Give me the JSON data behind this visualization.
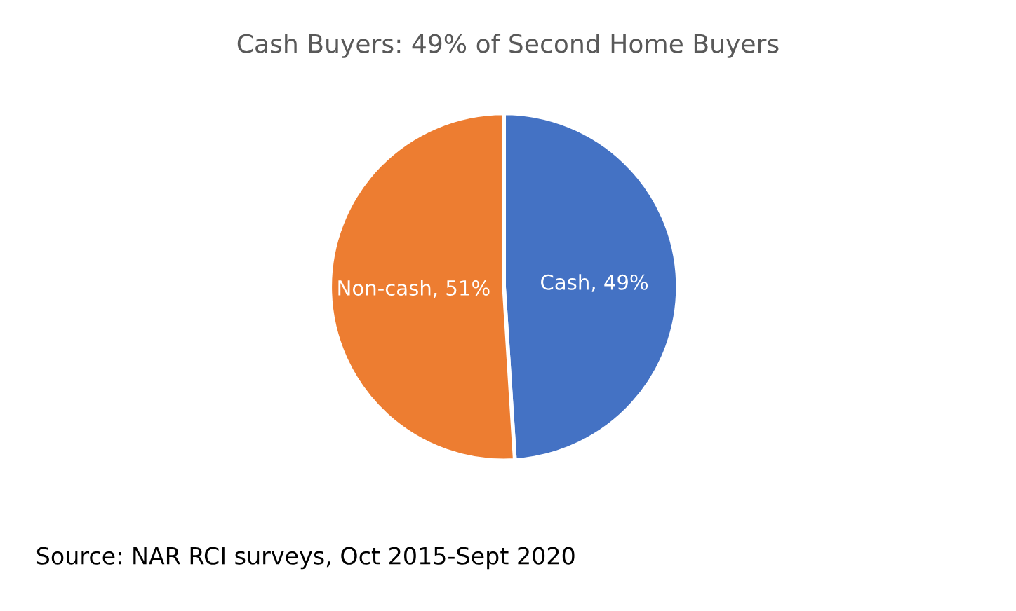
{
  "chart_data": {
    "type": "pie",
    "title": "Cash Buyers: 49% of Second Home Buyers",
    "categories": [
      "Cash",
      "Non-cash"
    ],
    "values": [
      49,
      51
    ],
    "colors": [
      "#4472c4",
      "#ed7d31"
    ],
    "value_labels": [
      "49%",
      "51%"
    ],
    "annotations": [
      "Source: NAR RCI surveys, Oct 2015-Sept 2020"
    ]
  }
}
